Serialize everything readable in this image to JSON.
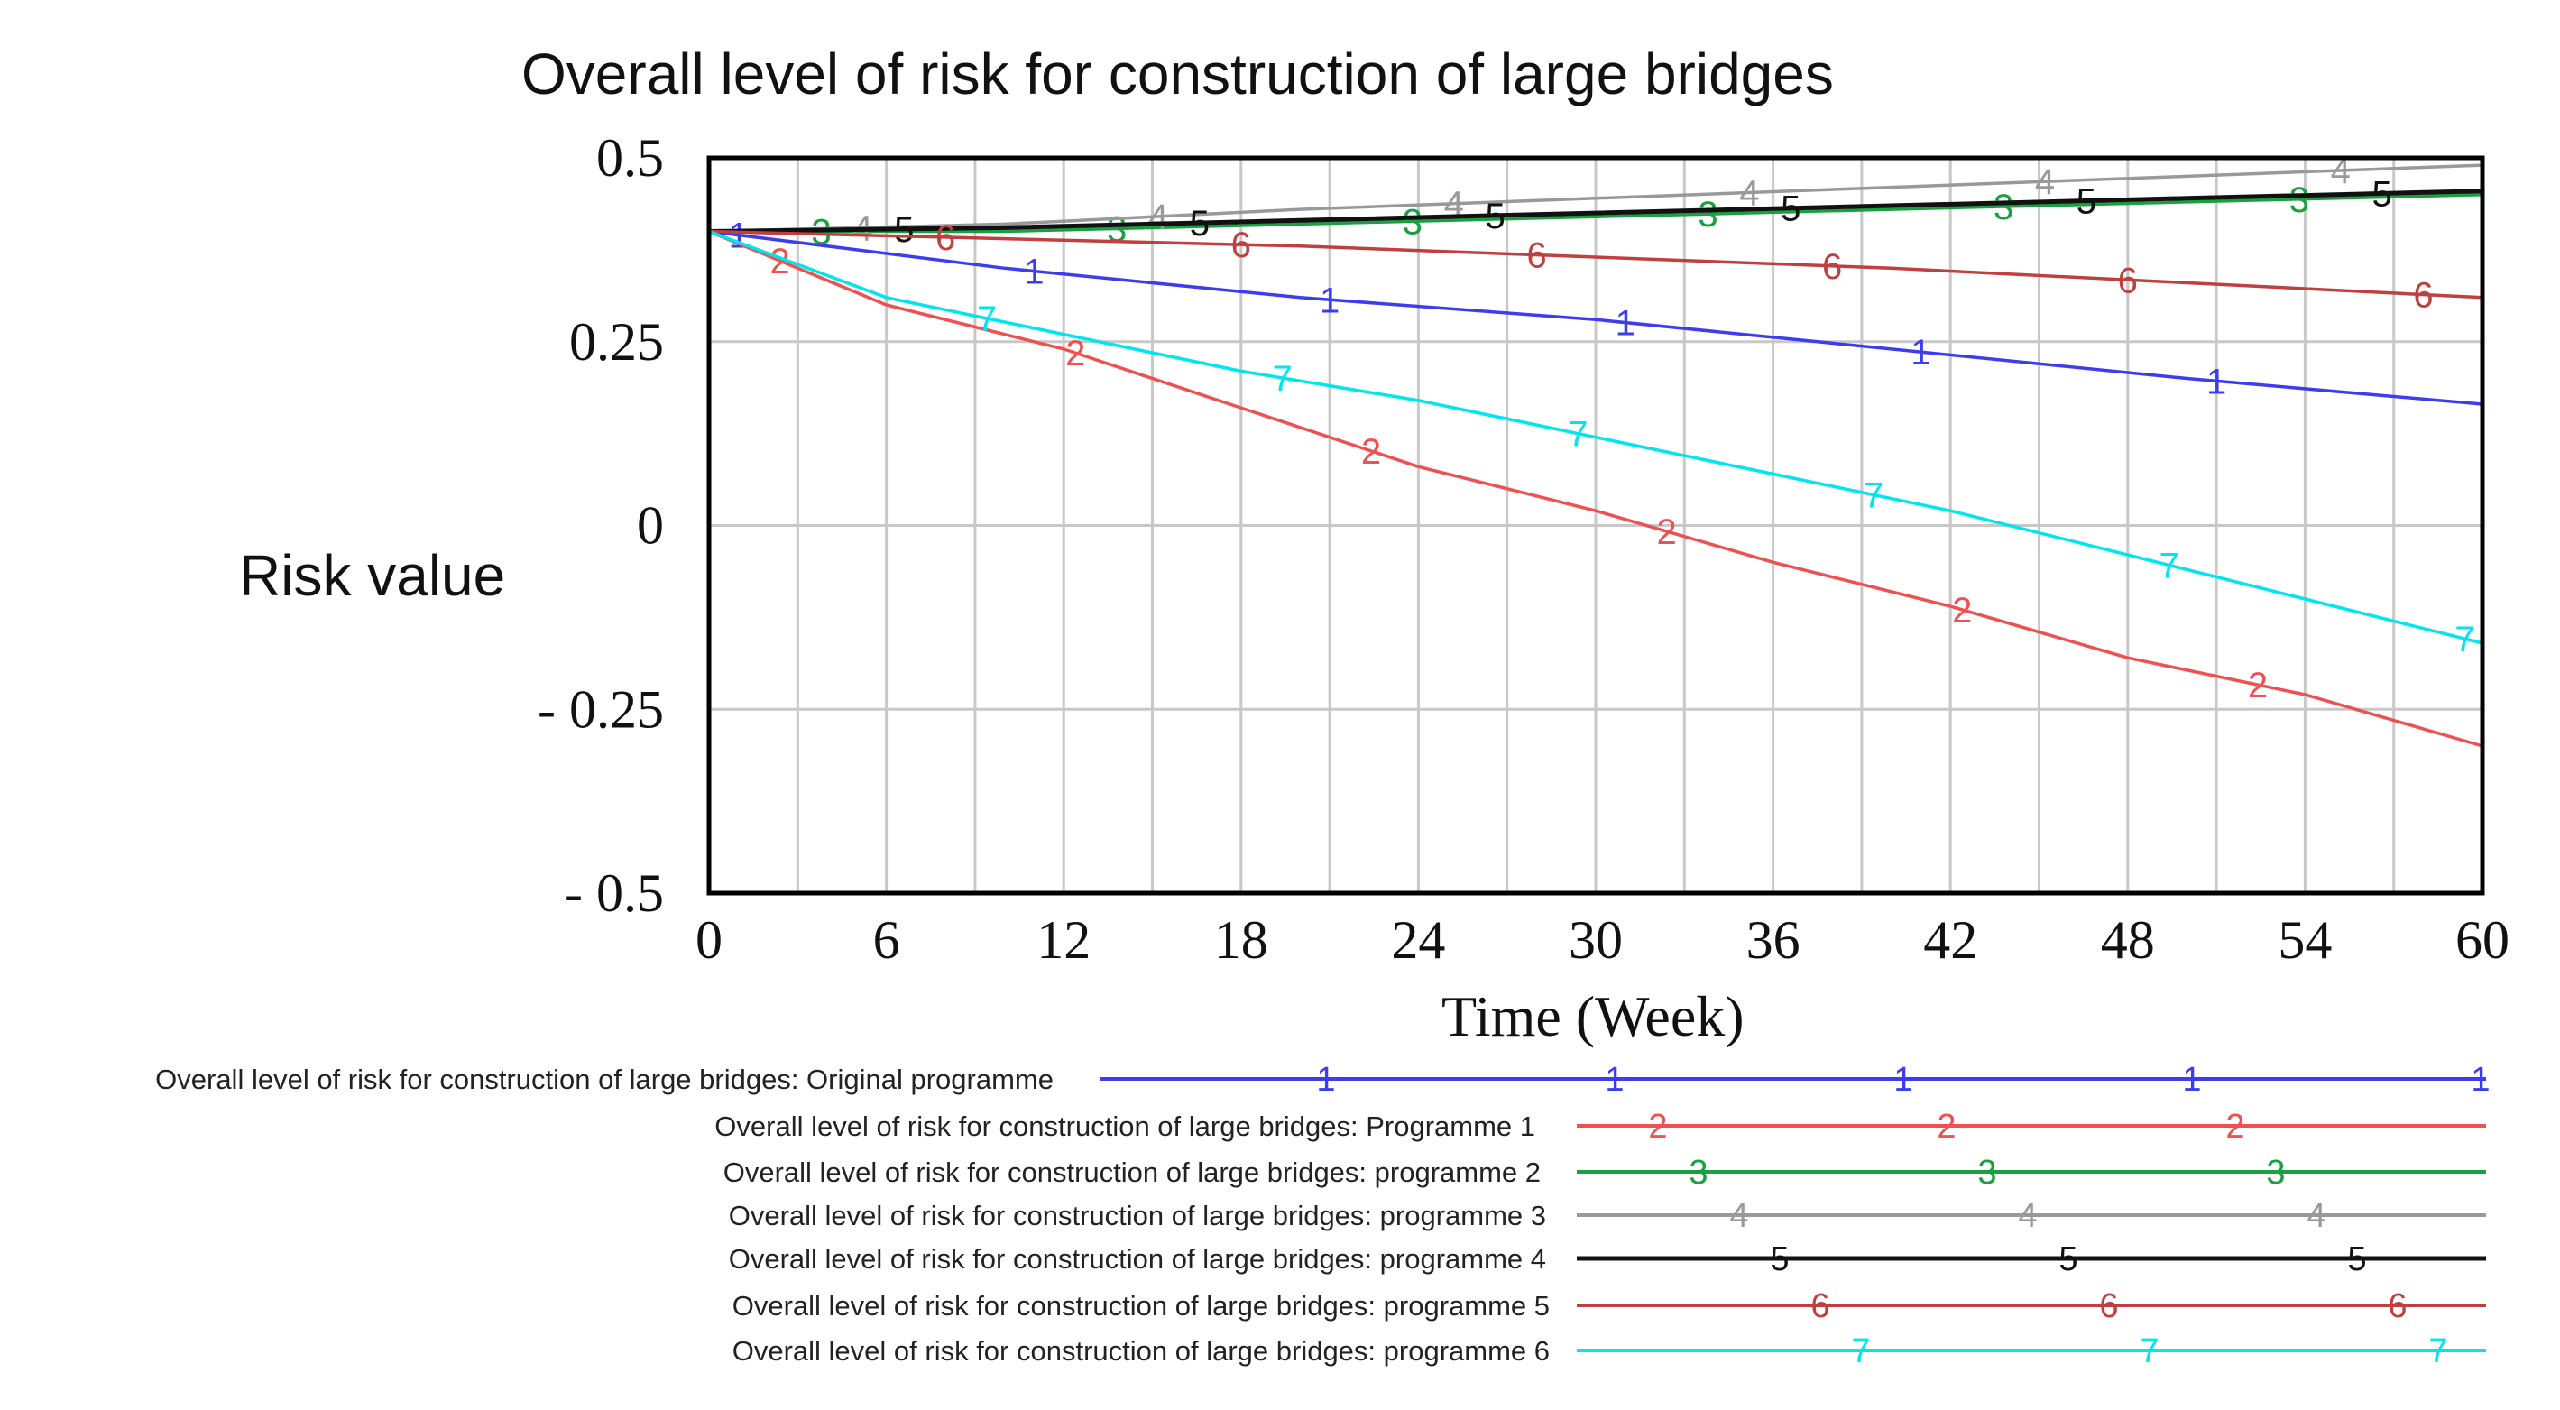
{
  "chart_data": {
    "type": "line",
    "title": "Overall level of risk for construction of large bridges",
    "xlabel": "Time (Week)",
    "ylabel": "Risk value",
    "xlim": [
      0,
      60
    ],
    "ylim": [
      -0.5,
      0.5
    ],
    "x_ticks": [
      0,
      6,
      12,
      18,
      24,
      30,
      36,
      42,
      48,
      54,
      60
    ],
    "x_tick_labels": [
      "0",
      "6",
      "12",
      "18",
      "24",
      "30",
      "36",
      "42",
      "48",
      "54",
      "60"
    ],
    "y_ticks": [
      0.5,
      0.25,
      0,
      -0.25,
      -0.5
    ],
    "y_tick_labels": [
      "0.5",
      "0.25",
      "0",
      "- 0.25",
      "- 0.5"
    ],
    "x_grid_step": 3,
    "grid": true,
    "legend_position": "bottom",
    "series": [
      {
        "marker": "1",
        "name": "Overall level of risk for construction of large bridges: Original programme",
        "color": "#3d3df0",
        "points": [
          [
            0,
            0.4
          ],
          [
            10,
            0.35
          ],
          [
            20,
            0.31
          ],
          [
            30,
            0.28
          ],
          [
            40,
            0.24
          ],
          [
            50,
            0.2
          ],
          [
            60,
            0.165
          ]
        ]
      },
      {
        "marker": "2",
        "name": "Overall level of risk for construction of large bridges: Programme 1",
        "color": "#f05050",
        "points": [
          [
            0,
            0.4
          ],
          [
            6,
            0.3
          ],
          [
            12,
            0.24
          ],
          [
            18,
            0.16
          ],
          [
            24,
            0.08
          ],
          [
            30,
            0.02
          ],
          [
            36,
            -0.05
          ],
          [
            42,
            -0.11
          ],
          [
            48,
            -0.18
          ],
          [
            54,
            -0.23
          ],
          [
            60,
            -0.3
          ]
        ]
      },
      {
        "marker": "3",
        "name": "Overall level of risk for construction of large bridges: programme 2",
        "color": "#1aa040",
        "points": [
          [
            0,
            0.4
          ],
          [
            10,
            0.4
          ],
          [
            20,
            0.41
          ],
          [
            30,
            0.42
          ],
          [
            40,
            0.43
          ],
          [
            50,
            0.44
          ],
          [
            60,
            0.45
          ]
        ]
      },
      {
        "marker": "4",
        "name": "Overall level of risk for construction of large bridges: programme 3",
        "color": "#999999",
        "points": [
          [
            0,
            0.4
          ],
          [
            10,
            0.41
          ],
          [
            20,
            0.43
          ],
          [
            30,
            0.445
          ],
          [
            40,
            0.46
          ],
          [
            50,
            0.475
          ],
          [
            60,
            0.49
          ]
        ]
      },
      {
        "marker": "5",
        "name": "Overall level of risk for construction of large bridges: programme 4",
        "color": "#111111",
        "points": [
          [
            0,
            0.4
          ],
          [
            10,
            0.405
          ],
          [
            20,
            0.415
          ],
          [
            30,
            0.425
          ],
          [
            40,
            0.435
          ],
          [
            50,
            0.445
          ],
          [
            60,
            0.455
          ]
        ]
      },
      {
        "marker": "6",
        "name": "Overall level of risk for construction of large bridges: programme 5",
        "color": "#c04040",
        "points": [
          [
            0,
            0.4
          ],
          [
            10,
            0.39
          ],
          [
            20,
            0.38
          ],
          [
            30,
            0.365
          ],
          [
            40,
            0.35
          ],
          [
            50,
            0.33
          ],
          [
            60,
            0.31
          ]
        ]
      },
      {
        "marker": "7",
        "name": "Overall level of risk for construction of large bridges: programme 6",
        "color": "#00e5ee",
        "points": [
          [
            0,
            0.4
          ],
          [
            6,
            0.31
          ],
          [
            12,
            0.26
          ],
          [
            18,
            0.21
          ],
          [
            24,
            0.17
          ],
          [
            30,
            0.12
          ],
          [
            36,
            0.07
          ],
          [
            42,
            0.02
          ],
          [
            48,
            -0.04
          ],
          [
            54,
            -0.1
          ],
          [
            60,
            -0.16
          ]
        ]
      }
    ]
  }
}
